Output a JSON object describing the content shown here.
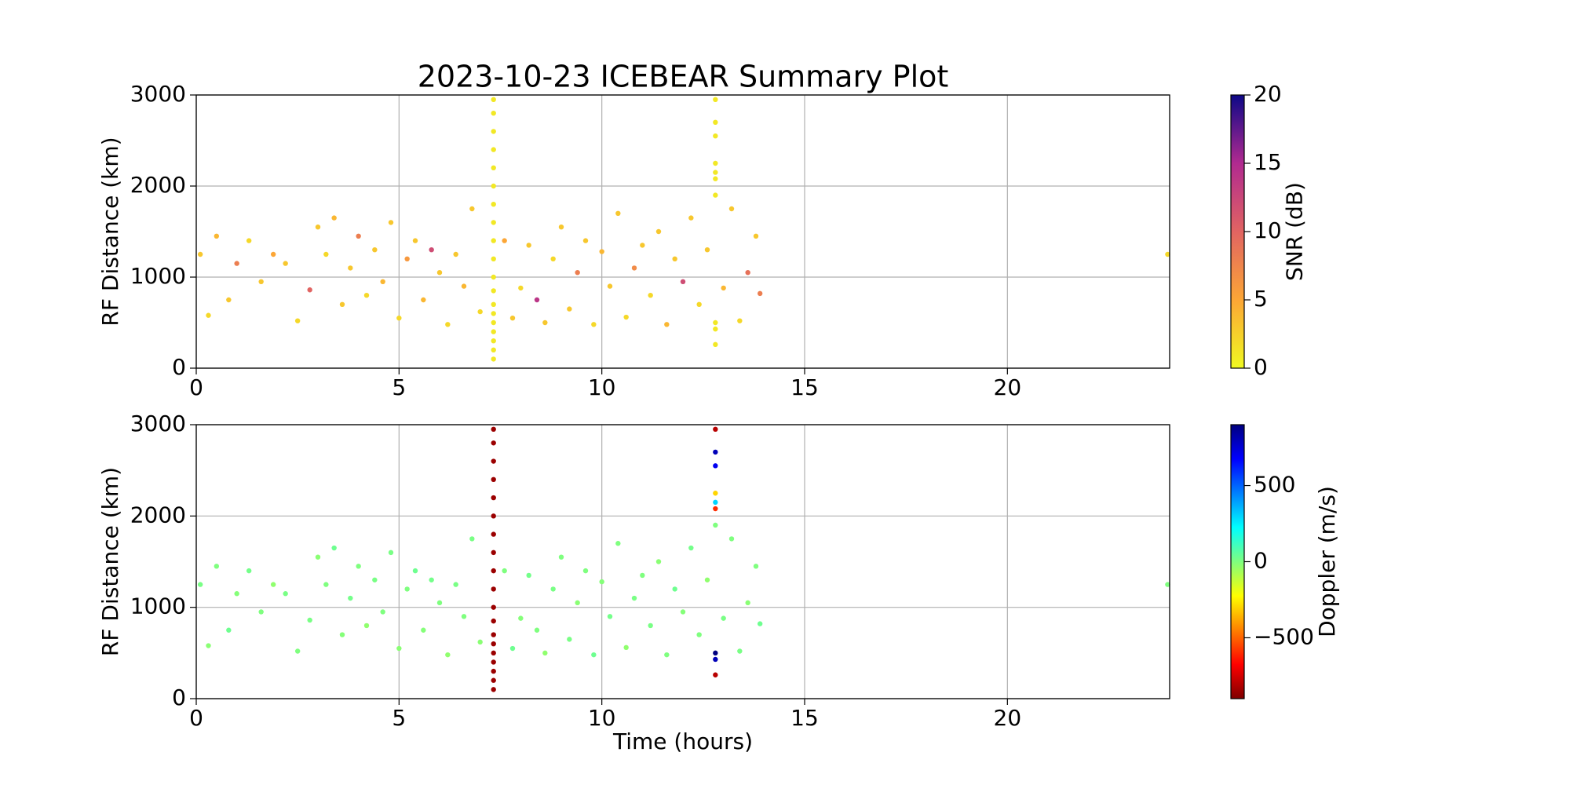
{
  "chart_data": [
    {
      "type": "scatter",
      "title": "2023-10-23 ICEBEAR Summary Plot",
      "ylabel": "RF Distance (km)",
      "xlim": [
        0,
        24
      ],
      "xticks": [
        0,
        5,
        10,
        15,
        20
      ],
      "ylim": [
        0,
        3000
      ],
      "yticks": [
        0,
        1000,
        2000,
        3000
      ],
      "grid": true,
      "colorbar": {
        "label": "SNR (dB)",
        "lim": [
          0,
          20
        ],
        "ticks": [
          0,
          5,
          10,
          15,
          20
        ],
        "colormap": [
          "#f0f921",
          "#fca636",
          "#e16462",
          "#b12a90",
          "#0d0887"
        ]
      },
      "x": [
        0.1,
        0.3,
        0.5,
        0.8,
        1.0,
        1.3,
        1.6,
        1.9,
        2.2,
        2.5,
        2.8,
        3.0,
        3.2,
        3.4,
        3.6,
        3.8,
        4.0,
        4.2,
        4.4,
        4.6,
        4.8,
        5.0,
        5.2,
        5.4,
        5.6,
        5.8,
        6.0,
        6.2,
        6.4,
        6.6,
        6.8,
        7.0,
        7.6,
        7.8,
        8.0,
        8.2,
        8.4,
        8.6,
        8.8,
        9.0,
        9.2,
        9.4,
        9.6,
        9.8,
        10.0,
        10.2,
        10.4,
        10.6,
        10.8,
        11.0,
        11.2,
        11.4,
        11.6,
        11.8,
        12.0,
        12.2,
        12.4,
        12.6,
        13.0,
        13.2,
        13.4,
        13.6,
        13.8,
        13.9,
        7.33,
        7.33,
        7.33,
        7.33,
        7.33,
        7.33,
        7.33,
        7.33,
        7.33,
        7.33,
        7.33,
        7.33,
        7.33,
        7.33,
        7.33,
        7.33,
        7.33,
        7.33,
        7.33,
        12.8,
        12.8,
        12.8,
        12.8,
        12.8,
        12.8,
        12.8,
        12.8,
        12.8,
        12.8,
        23.95
      ],
      "y": [
        1250,
        580,
        1450,
        750,
        1150,
        1400,
        950,
        1250,
        1150,
        520,
        860,
        1550,
        1250,
        1650,
        700,
        1100,
        1450,
        800,
        1300,
        950,
        1600,
        550,
        1200,
        1400,
        750,
        1300,
        1050,
        480,
        1250,
        900,
        1750,
        620,
        1400,
        550,
        880,
        1350,
        750,
        500,
        1200,
        1550,
        650,
        1050,
        1400,
        480,
        1280,
        900,
        1700,
        560,
        1100,
        1350,
        800,
        1500,
        480,
        1200,
        950,
        1650,
        700,
        1300,
        880,
        1750,
        520,
        1050,
        1450,
        820,
        100,
        200,
        300,
        400,
        500,
        600,
        700,
        850,
        1000,
        1200,
        1400,
        1600,
        1800,
        2000,
        2200,
        2400,
        2600,
        2800,
        2950,
        2950,
        2700,
        2550,
        2250,
        2150,
        2080,
        1900,
        500,
        430,
        260,
        1250
      ],
      "c": [
        3,
        2,
        4,
        3,
        8,
        2,
        3,
        5,
        3,
        2,
        10,
        3,
        2,
        4,
        3,
        3,
        8,
        2,
        3,
        4,
        3,
        2,
        6,
        3,
        4,
        12,
        3,
        2,
        3,
        4,
        3,
        2,
        5,
        3,
        2,
        3,
        14,
        3,
        2,
        3,
        3,
        8,
        3,
        2,
        4,
        3,
        3,
        2,
        7,
        3,
        2,
        3,
        4,
        3,
        12,
        3,
        2,
        3,
        4,
        3,
        2,
        9,
        3,
        8,
        1,
        1,
        1,
        1,
        1,
        1,
        1,
        1,
        1,
        1,
        1,
        1,
        1,
        1,
        1,
        1,
        1,
        1,
        1,
        1,
        1,
        1,
        1,
        1,
        1,
        1,
        1,
        1,
        1,
        2
      ]
    },
    {
      "type": "scatter",
      "ylabel": "RF Distance (km)",
      "xlabel": "Time (hours)",
      "xlim": [
        0,
        24
      ],
      "xticks": [
        0,
        5,
        10,
        15,
        20
      ],
      "ylim": [
        0,
        3000
      ],
      "yticks": [
        0,
        1000,
        2000,
        3000
      ],
      "grid": true,
      "colorbar": {
        "label": "Doppler (m/s)",
        "lim": [
          -900,
          900
        ],
        "ticks": [
          {
            "value": -500,
            "label": "−500"
          },
          0,
          500
        ],
        "colormap": [
          "#7f0000",
          "#ff0000",
          "#ff8000",
          "#ffff00",
          "#7fff7f",
          "#00ffff",
          "#0080ff",
          "#0000ff",
          "#00007f"
        ]
      },
      "x": [
        0.1,
        0.3,
        0.5,
        0.8,
        1.0,
        1.3,
        1.6,
        1.9,
        2.2,
        2.5,
        2.8,
        3.0,
        3.2,
        3.4,
        3.6,
        3.8,
        4.0,
        4.2,
        4.4,
        4.6,
        4.8,
        5.0,
        5.2,
        5.4,
        5.6,
        5.8,
        6.0,
        6.2,
        6.4,
        6.6,
        6.8,
        7.0,
        7.6,
        7.8,
        8.0,
        8.2,
        8.4,
        8.6,
        8.8,
        9.0,
        9.2,
        9.4,
        9.6,
        9.8,
        10.0,
        10.2,
        10.4,
        10.6,
        10.8,
        11.0,
        11.2,
        11.4,
        11.6,
        11.8,
        12.0,
        12.2,
        12.4,
        12.6,
        13.0,
        13.2,
        13.4,
        13.6,
        13.8,
        13.9,
        7.33,
        7.33,
        7.33,
        7.33,
        7.33,
        7.33,
        7.33,
        7.33,
        7.33,
        7.33,
        7.33,
        7.33,
        7.33,
        7.33,
        7.33,
        7.33,
        7.33,
        7.33,
        7.33,
        12.8,
        12.8,
        12.8,
        12.8,
        12.8,
        12.8,
        12.8,
        12.8,
        12.8,
        12.8,
        23.95
      ],
      "y": [
        1250,
        580,
        1450,
        750,
        1150,
        1400,
        950,
        1250,
        1150,
        520,
        860,
        1550,
        1250,
        1650,
        700,
        1100,
        1450,
        800,
        1300,
        950,
        1600,
        550,
        1200,
        1400,
        750,
        1300,
        1050,
        480,
        1250,
        900,
        1750,
        620,
        1400,
        550,
        880,
        1350,
        750,
        500,
        1200,
        1550,
        650,
        1050,
        1400,
        480,
        1280,
        900,
        1700,
        560,
        1100,
        1350,
        800,
        1500,
        480,
        1200,
        950,
        1650,
        700,
        1300,
        880,
        1750,
        520,
        1050,
        1450,
        820,
        100,
        200,
        300,
        400,
        500,
        600,
        700,
        850,
        1000,
        1200,
        1400,
        1600,
        1800,
        2000,
        2200,
        2400,
        2600,
        2800,
        2950,
        2950,
        2700,
        2550,
        2250,
        2150,
        2080,
        1900,
        500,
        430,
        260,
        1250
      ],
      "c": [
        10,
        -20,
        0,
        30,
        -10,
        20,
        0,
        -30,
        10,
        0,
        10,
        -20,
        0,
        30,
        -10,
        20,
        0,
        -30,
        10,
        0,
        10,
        -20,
        0,
        30,
        -10,
        20,
        0,
        -30,
        10,
        0,
        10,
        -20,
        0,
        30,
        -10,
        20,
        0,
        -30,
        10,
        0,
        10,
        -20,
        0,
        30,
        -10,
        20,
        0,
        -30,
        10,
        0,
        10,
        -20,
        0,
        30,
        -10,
        20,
        0,
        -30,
        10,
        0,
        10,
        -20,
        0,
        30,
        -850,
        -850,
        -850,
        -850,
        -850,
        -850,
        -850,
        -850,
        -850,
        -850,
        -850,
        -850,
        -850,
        -850,
        -850,
        -850,
        -850,
        -850,
        -850,
        -800,
        800,
        700,
        -300,
        300,
        -600,
        0,
        900,
        800,
        -800,
        0
      ]
    }
  ]
}
